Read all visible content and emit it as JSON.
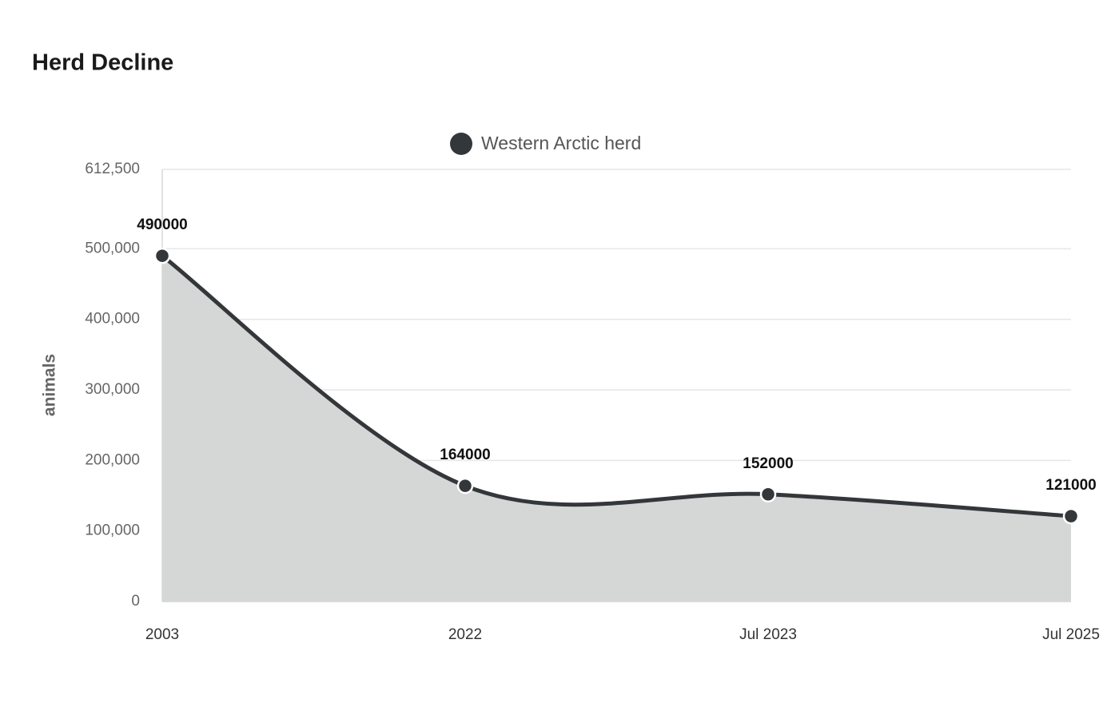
{
  "chart_data": {
    "type": "area",
    "title": "Herd Decline",
    "y_axis_label": "animals",
    "categories": [
      "2003",
      "2022",
      "Jul 2023",
      "Jul 2025"
    ],
    "series": [
      {
        "name": "Western Arctic herd",
        "color": "#33373a",
        "fill": "#d5d6d6",
        "values": [
          490000,
          164000,
          152000,
          121000
        ]
      }
    ],
    "ylim": [
      0,
      612500
    ],
    "yticks": [
      0,
      {
        "value": 100000,
        "label": "100,000"
      },
      {
        "value": 200000,
        "label": "200,000"
      },
      {
        "value": 300000,
        "label": "300,000"
      },
      {
        "value": 400000,
        "label": "400,000"
      },
      {
        "value": 500000,
        "label": "500,000"
      },
      {
        "value": 612500,
        "label": "612,500"
      }
    ],
    "grid": true,
    "legend_position": "top",
    "data_labels": true
  }
}
